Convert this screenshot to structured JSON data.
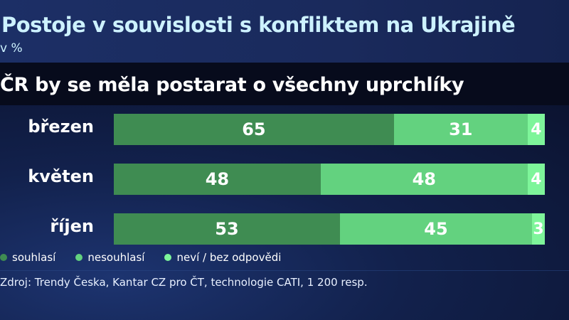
{
  "header": {
    "title": "Postoje v souvislosti s konfliktem na Ukrajině",
    "unit": "v %"
  },
  "subtitle": "ČR by se měla postarat o všechny uprchlíky",
  "legend": [
    {
      "label": "souhlasí",
      "color": "#3f8c52"
    },
    {
      "label": "nesouhlasí",
      "color": "#63d27f"
    },
    {
      "label": "neví / bez odpovědi",
      "color": "#7ef59a"
    }
  ],
  "rows": [
    {
      "label": "březen",
      "values": [
        65,
        31,
        4
      ]
    },
    {
      "label": "květen",
      "values": [
        48,
        48,
        4
      ]
    },
    {
      "label": "říjen",
      "values": [
        53,
        45,
        3
      ]
    }
  ],
  "source": "Zdroj: Trendy Česka, Kantar CZ pro ČT, technologie CATI, 1 200 resp.",
  "chart_data": {
    "type": "bar",
    "orientation": "horizontal",
    "stacked": true,
    "title": "Postoje v souvislosti s konfliktem na Ukrajině",
    "subtitle": "ČR by se měla postarat o všechny uprchlíky",
    "unit": "v %",
    "categories": [
      "březen",
      "květen",
      "říjen"
    ],
    "series": [
      {
        "name": "souhlasí",
        "values": [
          65,
          48,
          53
        ],
        "color": "#3f8c52"
      },
      {
        "name": "nesouhlasí",
        "values": [
          31,
          48,
          45
        ],
        "color": "#63d27f"
      },
      {
        "name": "neví / bez odpovědi",
        "values": [
          4,
          4,
          3
        ],
        "color": "#7ef59a"
      }
    ],
    "xlim": [
      0,
      100
    ],
    "grid": false,
    "legend_position": "bottom",
    "source": "Zdroj: Trendy Česka, Kantar CZ pro ČT, technologie CATI, 1 200 resp."
  }
}
